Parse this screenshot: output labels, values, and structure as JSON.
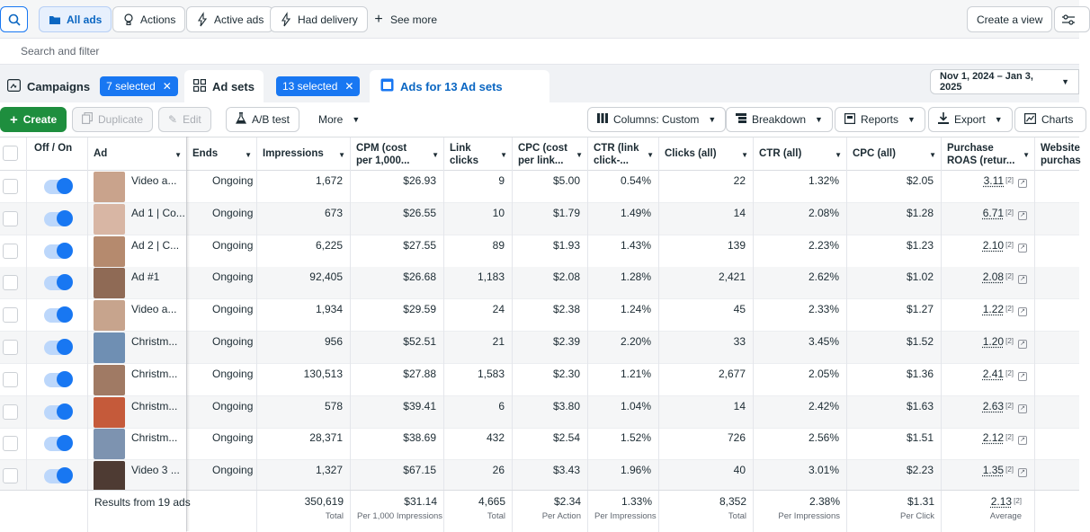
{
  "filters": {
    "all_ads": "All ads",
    "actions": "Actions",
    "active_ads": "Active ads",
    "had_delivery": "Had delivery",
    "see_more": "See more",
    "create_view": "Create a view"
  },
  "search": {
    "placeholder": "Search and filter"
  },
  "tabs": {
    "campaigns": "Campaigns",
    "campaigns_chip": "7 selected",
    "adsets": "Ad sets",
    "adsets_chip": "13 selected",
    "ads": "Ads for 13 Ad sets"
  },
  "date_range": "Nov 1, 2024 – Jan 3, 2025",
  "toolbar": {
    "create": "Create",
    "duplicate": "Duplicate",
    "edit": "Edit",
    "ab_test": "A/B test",
    "more": "More",
    "columns": "Columns: Custom",
    "breakdown": "Breakdown",
    "reports": "Reports",
    "export": "Export",
    "charts": "Charts"
  },
  "headers": {
    "off_on": "Off / On",
    "ad": "Ad",
    "ends": "Ends",
    "impressions": "Impressions",
    "cpm": "CPM (cost per 1,000...",
    "link_clicks": "Link clicks",
    "cpc_link": "CPC (cost per link...",
    "ctr_link": "CTR (link click-...",
    "clicks_all": "Clicks (all)",
    "ctr_all": "CTR (all)",
    "cpc_all": "CPC (all)",
    "roas": "Purchase ROAS (retur...",
    "website": "Website purchas"
  },
  "colors": {
    "accent": "#1877f2",
    "create": "#1e8e3e"
  },
  "rows": [
    {
      "ad": "Video a...",
      "ends": "Ongoing",
      "impressions": "1,672",
      "cpm": "$26.93",
      "link_clicks": "9",
      "cpc_link": "$5.00",
      "ctr_link": "0.54%",
      "clicks_all": "22",
      "ctr_all": "1.32%",
      "cpc_all": "$2.05",
      "roas": "3.11",
      "sup": "[2]"
    },
    {
      "ad": "Ad 1 | Co...",
      "ends": "Ongoing",
      "impressions": "673",
      "cpm": "$26.55",
      "link_clicks": "10",
      "cpc_link": "$1.79",
      "ctr_link": "1.49%",
      "clicks_all": "14",
      "ctr_all": "2.08%",
      "cpc_all": "$1.28",
      "roas": "6.71",
      "sup": "[2]"
    },
    {
      "ad": "Ad 2 | C...",
      "ends": "Ongoing",
      "impressions": "6,225",
      "cpm": "$27.55",
      "link_clicks": "89",
      "cpc_link": "$1.93",
      "ctr_link": "1.43%",
      "clicks_all": "139",
      "ctr_all": "2.23%",
      "cpc_all": "$1.23",
      "roas": "2.10",
      "sup": "[2]"
    },
    {
      "ad": "Ad #1",
      "ends": "Ongoing",
      "impressions": "92,405",
      "cpm": "$26.68",
      "link_clicks": "1,183",
      "cpc_link": "$2.08",
      "ctr_link": "1.28%",
      "clicks_all": "2,421",
      "ctr_all": "2.62%",
      "cpc_all": "$1.02",
      "roas": "2.08",
      "sup": "[2]"
    },
    {
      "ad": "Video a...",
      "ends": "Ongoing",
      "impressions": "1,934",
      "cpm": "$29.59",
      "link_clicks": "24",
      "cpc_link": "$2.38",
      "ctr_link": "1.24%",
      "clicks_all": "45",
      "ctr_all": "2.33%",
      "cpc_all": "$1.27",
      "roas": "1.22",
      "sup": "[2]"
    },
    {
      "ad": "Christm...",
      "ends": "Ongoing",
      "impressions": "956",
      "cpm": "$52.51",
      "link_clicks": "21",
      "cpc_link": "$2.39",
      "ctr_link": "2.20%",
      "clicks_all": "33",
      "ctr_all": "3.45%",
      "cpc_all": "$1.52",
      "roas": "1.20",
      "sup": "[2]"
    },
    {
      "ad": "Christm...",
      "ends": "Ongoing",
      "impressions": "130,513",
      "cpm": "$27.88",
      "link_clicks": "1,583",
      "cpc_link": "$2.30",
      "ctr_link": "1.21%",
      "clicks_all": "2,677",
      "ctr_all": "2.05%",
      "cpc_all": "$1.36",
      "roas": "2.41",
      "sup": "[2]"
    },
    {
      "ad": "Christm...",
      "ends": "Ongoing",
      "impressions": "578",
      "cpm": "$39.41",
      "link_clicks": "6",
      "cpc_link": "$3.80",
      "ctr_link": "1.04%",
      "clicks_all": "14",
      "ctr_all": "2.42%",
      "cpc_all": "$1.63",
      "roas": "2.63",
      "sup": "[2]"
    },
    {
      "ad": "Christm...",
      "ends": "Ongoing",
      "impressions": "28,371",
      "cpm": "$38.69",
      "link_clicks": "432",
      "cpc_link": "$2.54",
      "ctr_link": "1.52%",
      "clicks_all": "726",
      "ctr_all": "2.56%",
      "cpc_all": "$1.51",
      "roas": "2.12",
      "sup": "[2]"
    },
    {
      "ad": "Video 3 ...",
      "ends": "Ongoing",
      "impressions": "1,327",
      "cpm": "$67.15",
      "link_clicks": "26",
      "cpc_link": "$3.43",
      "ctr_link": "1.96%",
      "clicks_all": "40",
      "ctr_all": "3.01%",
      "cpc_all": "$2.23",
      "roas": "1.35",
      "sup": "[2]"
    }
  ],
  "thumb_colors": [
    "#c9a38c",
    "#d8b6a4",
    "#b58a6e",
    "#8f6a55",
    "#c7a48d",
    "#6f8fb3",
    "#a07a64",
    "#c55a3a",
    "#7d93b0",
    "#4e3b33"
  ],
  "totals": {
    "label": "Results from 19 ads",
    "impressions": "350,619",
    "impressions_sub": "Total",
    "cpm": "$31.14",
    "cpm_sub": "Per 1,000 Impressions",
    "link_clicks": "4,665",
    "link_clicks_sub": "Total",
    "cpc_link": "$2.34",
    "cpc_link_sub": "Per Action",
    "ctr_link": "1.33%",
    "ctr_link_sub": "Per Impressions",
    "clicks_all": "8,352",
    "clicks_all_sub": "Total",
    "ctr_all": "2.38%",
    "ctr_all_sub": "Per Impressions",
    "cpc_all": "$1.31",
    "cpc_all_sub": "Per Click",
    "roas": "2.13",
    "roas_sup": "[2]",
    "roas_sub": "Average"
  }
}
